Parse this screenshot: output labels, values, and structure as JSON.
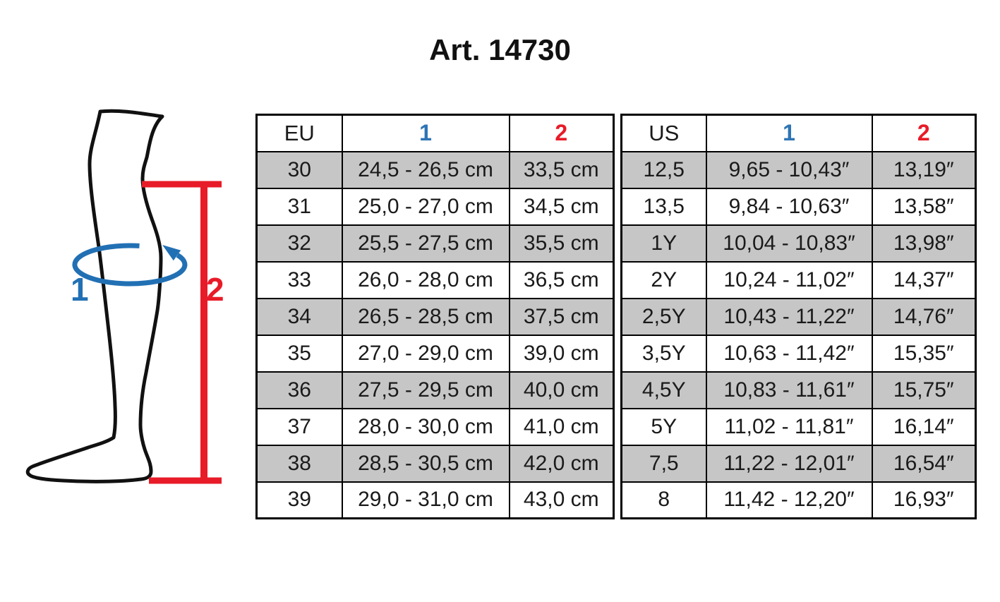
{
  "title": "Art. 14730",
  "colors": {
    "header_blue": "#2E74B5",
    "diagram_blue": "#2270B4",
    "red": "#E81B28",
    "stripe_grey": "#C6C6C6",
    "text": "#1A1A1A",
    "border": "#000000"
  },
  "diagram": {
    "circumference_label": "1",
    "height_label": "2"
  },
  "size_table": {
    "headers_cm": [
      "EU",
      "1",
      "2"
    ],
    "headers_us": [
      "US",
      "1",
      "2"
    ],
    "rows": [
      [
        "30",
        "24,5 - 26,5 cm",
        "33,5 cm",
        "12,5",
        "9,65 - 10,43″",
        "13,19″"
      ],
      [
        "31",
        "25,0 - 27,0 cm",
        "34,5 cm",
        "13,5",
        "9,84 - 10,63″",
        "13,58″"
      ],
      [
        "32",
        "25,5 - 27,5 cm",
        "35,5 cm",
        "1Y",
        "10,04 - 10,83″",
        "13,98″"
      ],
      [
        "33",
        "26,0 - 28,0 cm",
        "36,5 cm",
        "2Y",
        "10,24 - 11,02″",
        "14,37″"
      ],
      [
        "34",
        "26,5 - 28,5 cm",
        "37,5 cm",
        "2,5Y",
        "10,43 - 11,22″",
        "14,76″"
      ],
      [
        "35",
        "27,0 - 29,0 cm",
        "39,0 cm",
        "3,5Y",
        "10,63 - 11,42″",
        "15,35″"
      ],
      [
        "36",
        "27,5 - 29,5 cm",
        "40,0 cm",
        "4,5Y",
        "10,83 - 11,61″",
        "15,75″"
      ],
      [
        "37",
        "28,0 - 30,0 cm",
        "41,0 cm",
        "5Y",
        "11,02 - 11,81″",
        "16,14″"
      ],
      [
        "38",
        "28,5 - 30,5 cm",
        "42,0 cm",
        "7,5",
        "11,22 - 12,01″",
        "16,54″"
      ],
      [
        "39",
        "29,0 - 31,0 cm",
        "43,0 cm",
        "8",
        "11,42 - 12,20″",
        "16,93″"
      ]
    ]
  }
}
